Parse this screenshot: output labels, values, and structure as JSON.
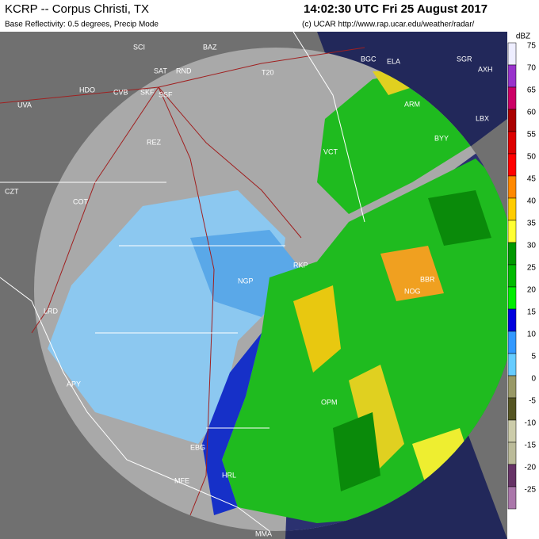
{
  "header": {
    "station": "KCRP -- Corpus Christi, TX",
    "time": "14:02:30 UTC Fri 25 August 2017",
    "product": "Base Reflectivity: 0.5 degrees, Precip Mode",
    "credit": "(c) UCAR  http://www.rap.ucar.edu/weather/radar/"
  },
  "legend": {
    "unit": "dBZ",
    "levels": [
      {
        "value": 75,
        "color": "#eeeeff"
      },
      {
        "value": 70,
        "color": "#9933cc"
      },
      {
        "value": 65,
        "color": "#cc0066"
      },
      {
        "value": 60,
        "color": "#aa0000"
      },
      {
        "value": 55,
        "color": "#dd0000"
      },
      {
        "value": 50,
        "color": "#ff0000"
      },
      {
        "value": 45,
        "color": "#ff8800"
      },
      {
        "value": 40,
        "color": "#ffcc00"
      },
      {
        "value": 35,
        "color": "#ffff33"
      },
      {
        "value": 30,
        "color": "#009900"
      },
      {
        "value": 25,
        "color": "#00bb00"
      },
      {
        "value": 20,
        "color": "#00ee00"
      },
      {
        "value": 15,
        "color": "#0000dd"
      },
      {
        "value": 10,
        "color": "#3399ff"
      },
      {
        "value": 5,
        "color": "#66ccff"
      },
      {
        "value": 0,
        "color": "#999966"
      },
      {
        "value": -5,
        "color": "#555522"
      },
      {
        "value": -10,
        "color": "#ccccaa"
      },
      {
        "value": -15,
        "color": "#bbbb99"
      },
      {
        "value": -20,
        "color": "#663366"
      },
      {
        "value": -25,
        "color": "#aa77aa"
      }
    ]
  },
  "stations": [
    "SCI",
    "BAZ",
    "SAT",
    "RND",
    "T20",
    "HDO",
    "CVB",
    "SKF",
    "SSF",
    "UVA",
    "REZ",
    "COT",
    "CZT",
    "LRD",
    "APY",
    "EBG",
    "HRL",
    "MFE",
    "MMA",
    "OPM",
    "BYY",
    "ARM",
    "LBX",
    "BGC",
    "ELA",
    "SGR",
    "AXH",
    "VCT",
    "RKP",
    "NGP",
    "BBR",
    "NOG"
  ]
}
